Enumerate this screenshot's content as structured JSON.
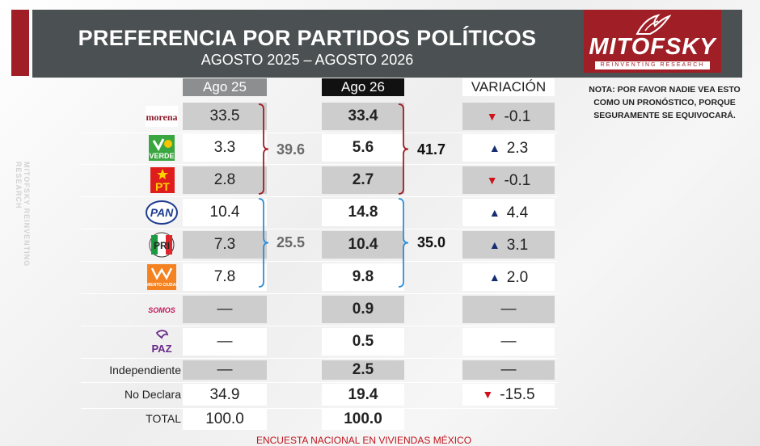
{
  "header": {
    "title": "PREFERENCIA POR PARTIDOS POLÍTICOS",
    "subtitle": "AGOSTO 2025 – AGOSTO 2026"
  },
  "logo": {
    "text": "MITOFSKY",
    "tagline": "REINVENTING RESEARCH",
    "side_text": "MITOFSKY REINVENTING RESEARCH"
  },
  "note": "NOTA: POR FAVOR NADIE VEA ESTO COMO UN PRONÓSTICO, PORQUE SEGURAMENTE SE EQUIVOCARÁ.",
  "footer": "ENCUESTA NACIONAL EN VIVIENDAS MÉXICO",
  "colors": {
    "brand_red": "#a01e25",
    "banner": "#4b5052",
    "down": "#d0111a",
    "up": "#142c72"
  },
  "chart_data": {
    "type": "table",
    "columns": [
      "Ago 25",
      "Ago 26",
      "VARIACIÓN"
    ],
    "rows": [
      {
        "party": "morena",
        "logo_text": "morena",
        "ago25": "33.5",
        "ago26": "33.4",
        "direction": "down",
        "variation": "-0.1"
      },
      {
        "party": "verde",
        "logo_text": "VERDE",
        "ago25": "3.3",
        "ago26": "5.6",
        "direction": "up",
        "variation": "2.3"
      },
      {
        "party": "pt",
        "logo_text": "PT",
        "ago25": "2.8",
        "ago26": "2.7",
        "direction": "down",
        "variation": "-0.1"
      },
      {
        "party": "pan",
        "logo_text": "PAN",
        "ago25": "10.4",
        "ago26": "14.8",
        "direction": "up",
        "variation": "4.4"
      },
      {
        "party": "pri",
        "logo_text": "PRI",
        "ago25": "7.3",
        "ago26": "10.4",
        "direction": "up",
        "variation": "3.1"
      },
      {
        "party": "mc",
        "logo_text": "MOVIMIENTO CIUDADANO",
        "ago25": "7.8",
        "ago26": "9.8",
        "direction": "up",
        "variation": "2.0"
      },
      {
        "party": "somos",
        "logo_text": "SOMOS",
        "ago25": "—",
        "ago26": "0.9",
        "direction": "none",
        "variation": "—"
      },
      {
        "party": "paz",
        "logo_text": "PAZ",
        "ago25": "—",
        "ago26": "0.5",
        "direction": "none",
        "variation": "—"
      },
      {
        "party": "independiente",
        "label": "Independiente",
        "ago25": "—",
        "ago26": "2.5",
        "direction": "none",
        "variation": "—"
      },
      {
        "party": "no-declara",
        "label": "No Declara",
        "ago25": "34.9",
        "ago26": "19.4",
        "direction": "down",
        "variation": "-15.5"
      },
      {
        "party": "total",
        "label": "TOTAL",
        "ago25": "100.0",
        "ago26": "100.0",
        "direction": "none",
        "variation": ""
      }
    ],
    "groups": [
      {
        "parties": [
          "morena",
          "verde",
          "pt"
        ],
        "ago25_total": "39.6",
        "ago26_total": "41.7",
        "color": "#a01e25"
      },
      {
        "parties": [
          "pan",
          "pri",
          "mc"
        ],
        "ago25_total": "25.5",
        "ago26_total": "35.0",
        "color": "#2f8fd8"
      }
    ]
  }
}
